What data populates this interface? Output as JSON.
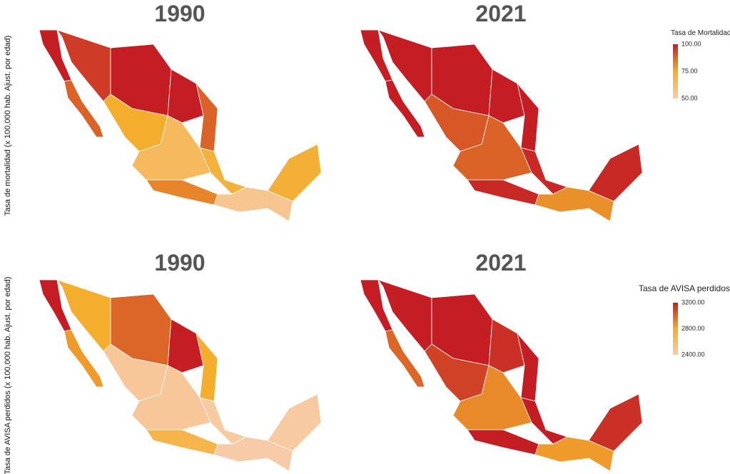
{
  "rows": [
    {
      "ylabel": "Tasa de mortalidad (x 100,000 hab. Ajust. por edad)",
      "colorbar": {
        "title": "Tasa de Mortalidad",
        "lim": [
          50,
          100
        ],
        "ticks": [
          {
            "value": 100,
            "label": "100.00"
          },
          {
            "value": 75,
            "label": "75.00"
          },
          {
            "value": 50,
            "label": "50.00"
          }
        ],
        "colors": [
          "#c41e24",
          "#f4ad2c",
          "#f8cba8"
        ]
      },
      "maps": [
        {
          "title": "1990",
          "values": [
            100,
            88,
            95,
            100,
            100,
            88,
            75,
            65,
            82,
            72,
            55,
            73
          ]
        },
        {
          "title": "2021",
          "values": [
            100,
            100,
            100,
            100,
            100,
            100,
            90,
            88,
            98,
            98,
            80,
            98
          ]
        }
      ]
    },
    {
      "ylabel": "Tasa de AVISA perdidos (x 100,000 hab. Ajust. por edad)",
      "colorbar": {
        "title": "Tasa de AVISA perdidos",
        "lim": [
          2400,
          3200
        ],
        "ticks": [
          {
            "value": 3200,
            "label": "3200.00"
          },
          {
            "value": 2800,
            "label": "2800.00"
          },
          {
            "value": 2400,
            "label": "2400.00"
          }
        ],
        "colors": [
          "#c41e24",
          "#f4ad2c",
          "#f8cba8"
        ]
      },
      "maps": [
        {
          "title": "1990",
          "values": [
            3200,
            2850,
            2800,
            3000,
            3200,
            2800,
            2450,
            2450,
            2700,
            2420,
            2400,
            2420
          ]
        },
        {
          "title": "2021",
          "values": [
            3200,
            3000,
            3200,
            3200,
            3150,
            3200,
            3100,
            2900,
            3200,
            3200,
            2850,
            3150
          ]
        }
      ]
    }
  ]
}
